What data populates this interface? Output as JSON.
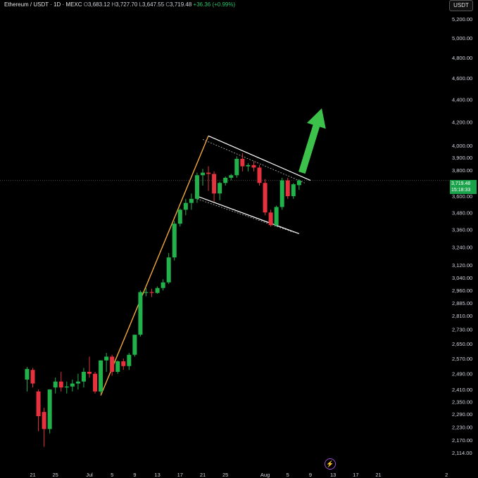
{
  "header": {
    "symbol": "Ethereum / USDT · 1D · MEXC",
    "o_label": "O",
    "open": "3,683.12",
    "h_label": "H",
    "high": "3,727.70",
    "l_label": "L",
    "low": "3,647.55",
    "c_label": "C",
    "close": "3,719.48",
    "change": "+36.36 (+0.99%)"
  },
  "unit_badge": "USDT",
  "price_tag": {
    "price": "3,719.48",
    "countdown": "15:18:33"
  },
  "colors": {
    "up": "#22b24c",
    "down": "#e5323e",
    "background": "#000000",
    "axis_text": "#d1d4dc",
    "flag_lines": "#ffffff",
    "pole_line": "#f2a93b",
    "breakout_arrow": "#3cc24a"
  },
  "chart_data": {
    "type": "candlestick",
    "y_axis_scale": "log",
    "ylim": [
      2080,
      5300
    ],
    "y_ticks": [
      "5,200.00",
      "5,000.00",
      "4,800.00",
      "4,600.00",
      "4,400.00",
      "4,200.00",
      "4,000.00",
      "3,900.00",
      "3,800.00",
      "3,600.00",
      "3,480.00",
      "3,360.00",
      "3,240.00",
      "3,120.00",
      "3,040.00",
      "2,960.00",
      "2,885.00",
      "2,810.00",
      "2,730.00",
      "2,650.00",
      "2,570.00",
      "2,490.00",
      "2,410.00",
      "2,350.00",
      "2,290.00",
      "2,230.00",
      "2,170.00",
      "2,114.00"
    ],
    "x_ticks": [
      "21",
      "25",
      "Jul",
      "5",
      "9",
      "13",
      "17",
      "21",
      "25",
      "Aug",
      "5",
      "9",
      "13",
      "17",
      "21",
      "2"
    ],
    "x_tick_days": [
      -10,
      -6,
      0,
      4,
      8,
      12,
      16,
      20,
      24,
      31,
      35,
      39,
      43,
      47,
      51,
      63
    ],
    "day_labels": "days counted from Jul 1 (day 0 = Jul 1)",
    "candles": [
      {
        "d": -11,
        "o": 2460,
        "h": 2525,
        "l": 2400,
        "c": 2515
      },
      {
        "d": -10,
        "o": 2510,
        "h": 2520,
        "l": 2420,
        "c": 2440
      },
      {
        "d": -9,
        "o": 2400,
        "h": 2410,
        "l": 2210,
        "c": 2280
      },
      {
        "d": -8,
        "o": 2300,
        "h": 2320,
        "l": 2140,
        "c": 2220
      },
      {
        "d": -7,
        "o": 2220,
        "h": 2410,
        "l": 2200,
        "c": 2410
      },
      {
        "d": -6,
        "o": 2420,
        "h": 2470,
        "l": 2390,
        "c": 2450
      },
      {
        "d": -5,
        "o": 2450,
        "h": 2500,
        "l": 2400,
        "c": 2420
      },
      {
        "d": -4,
        "o": 2420,
        "h": 2450,
        "l": 2390,
        "c": 2425
      },
      {
        "d": -3,
        "o": 2425,
        "h": 2460,
        "l": 2400,
        "c": 2440
      },
      {
        "d": -2,
        "o": 2440,
        "h": 2490,
        "l": 2410,
        "c": 2450
      },
      {
        "d": -1,
        "o": 2450,
        "h": 2520,
        "l": 2420,
        "c": 2500
      },
      {
        "d": 0,
        "o": 2500,
        "h": 2580,
        "l": 2470,
        "c": 2490
      },
      {
        "d": 1,
        "o": 2490,
        "h": 2500,
        "l": 2390,
        "c": 2400
      },
      {
        "d": 2,
        "o": 2400,
        "h": 2560,
        "l": 2390,
        "c": 2560
      },
      {
        "d": 3,
        "o": 2560,
        "h": 2600,
        "l": 2500,
        "c": 2580
      },
      {
        "d": 4,
        "o": 2580,
        "h": 2590,
        "l": 2480,
        "c": 2500
      },
      {
        "d": 5,
        "o": 2500,
        "h": 2560,
        "l": 2490,
        "c": 2555
      },
      {
        "d": 6,
        "o": 2555,
        "h": 2570,
        "l": 2510,
        "c": 2530
      },
      {
        "d": 7,
        "o": 2530,
        "h": 2600,
        "l": 2510,
        "c": 2590
      },
      {
        "d": 8,
        "o": 2590,
        "h": 2700,
        "l": 2580,
        "c": 2700
      },
      {
        "d": 9,
        "o": 2700,
        "h": 2960,
        "l": 2690,
        "c": 2950
      },
      {
        "d": 10,
        "o": 2945,
        "h": 2975,
        "l": 2925,
        "c": 2950
      },
      {
        "d": 11,
        "o": 2950,
        "h": 2970,
        "l": 2920,
        "c": 2945
      },
      {
        "d": 12,
        "o": 2945,
        "h": 2985,
        "l": 2940,
        "c": 2975
      },
      {
        "d": 13,
        "o": 2975,
        "h": 3030,
        "l": 2960,
        "c": 3010
      },
      {
        "d": 14,
        "o": 3010,
        "h": 3200,
        "l": 3000,
        "c": 3170
      },
      {
        "d": 15,
        "o": 3170,
        "h": 3420,
        "l": 3150,
        "c": 3400
      },
      {
        "d": 16,
        "o": 3400,
        "h": 3510,
        "l": 3380,
        "c": 3500
      },
      {
        "d": 17,
        "o": 3500,
        "h": 3580,
        "l": 3460,
        "c": 3550
      },
      {
        "d": 18,
        "o": 3550,
        "h": 3620,
        "l": 3500,
        "c": 3580
      },
      {
        "d": 19,
        "o": 3580,
        "h": 3780,
        "l": 3550,
        "c": 3760
      },
      {
        "d": 20,
        "o": 3760,
        "h": 3810,
        "l": 3680,
        "c": 3780
      },
      {
        "d": 21,
        "o": 3780,
        "h": 3830,
        "l": 3640,
        "c": 3770
      },
      {
        "d": 22,
        "o": 3770,
        "h": 3790,
        "l": 3560,
        "c": 3620
      },
      {
        "d": 23,
        "o": 3620,
        "h": 3710,
        "l": 3570,
        "c": 3700
      },
      {
        "d": 24,
        "o": 3700,
        "h": 3750,
        "l": 3680,
        "c": 3740
      },
      {
        "d": 25,
        "o": 3740,
        "h": 3770,
        "l": 3720,
        "c": 3760
      },
      {
        "d": 26,
        "o": 3760,
        "h": 3910,
        "l": 3740,
        "c": 3890
      },
      {
        "d": 27,
        "o": 3890,
        "h": 3935,
        "l": 3790,
        "c": 3830
      },
      {
        "d": 28,
        "o": 3830,
        "h": 3855,
        "l": 3790,
        "c": 3840
      },
      {
        "d": 29,
        "o": 3840,
        "h": 3870,
        "l": 3790,
        "c": 3820
      },
      {
        "d": 30,
        "o": 3820,
        "h": 3840,
        "l": 3680,
        "c": 3700
      },
      {
        "d": 31,
        "o": 3700,
        "h": 3730,
        "l": 3460,
        "c": 3480
      },
      {
        "d": 32,
        "o": 3480,
        "h": 3500,
        "l": 3380,
        "c": 3390
      },
      {
        "d": 33,
        "o": 3390,
        "h": 3530,
        "l": 3380,
        "c": 3520
      },
      {
        "d": 34,
        "o": 3520,
        "h": 3740,
        "l": 3500,
        "c": 3720
      },
      {
        "d": 35,
        "o": 3720,
        "h": 3740,
        "l": 3580,
        "c": 3600
      },
      {
        "d": 36,
        "o": 3600,
        "h": 3700,
        "l": 3580,
        "c": 3690
      },
      {
        "d": 37,
        "o": 3683.12,
        "h": 3727.7,
        "l": 3647.55,
        "c": 3719.48
      }
    ],
    "annotations": {
      "current_price_line": 3719.48,
      "pole": {
        "from": {
          "d": 2,
          "p": 2380
        },
        "to": {
          "d": 21,
          "p": 4080
        }
      },
      "flag_upper": {
        "from": {
          "d": 21,
          "p": 4080
        },
        "to": {
          "d": 39,
          "p": 3720
        }
      },
      "flag_lower": {
        "from": {
          "d": 19,
          "p": 3600
        },
        "to": {
          "d": 37,
          "p": 3330
        }
      },
      "flag_extensions": [
        {
          "from": {
            "d": 20,
            "p": 4050
          },
          "to": {
            "d": 38,
            "p": 3700
          }
        },
        {
          "from": {
            "d": 19,
            "p": 3580
          },
          "to": {
            "d": 36,
            "p": 3340
          }
        }
      ],
      "breakout_arrow": {
        "from": {
          "d": 37.5,
          "p": 3780
        },
        "to": {
          "d": 41,
          "p": 4320
        }
      }
    }
  }
}
